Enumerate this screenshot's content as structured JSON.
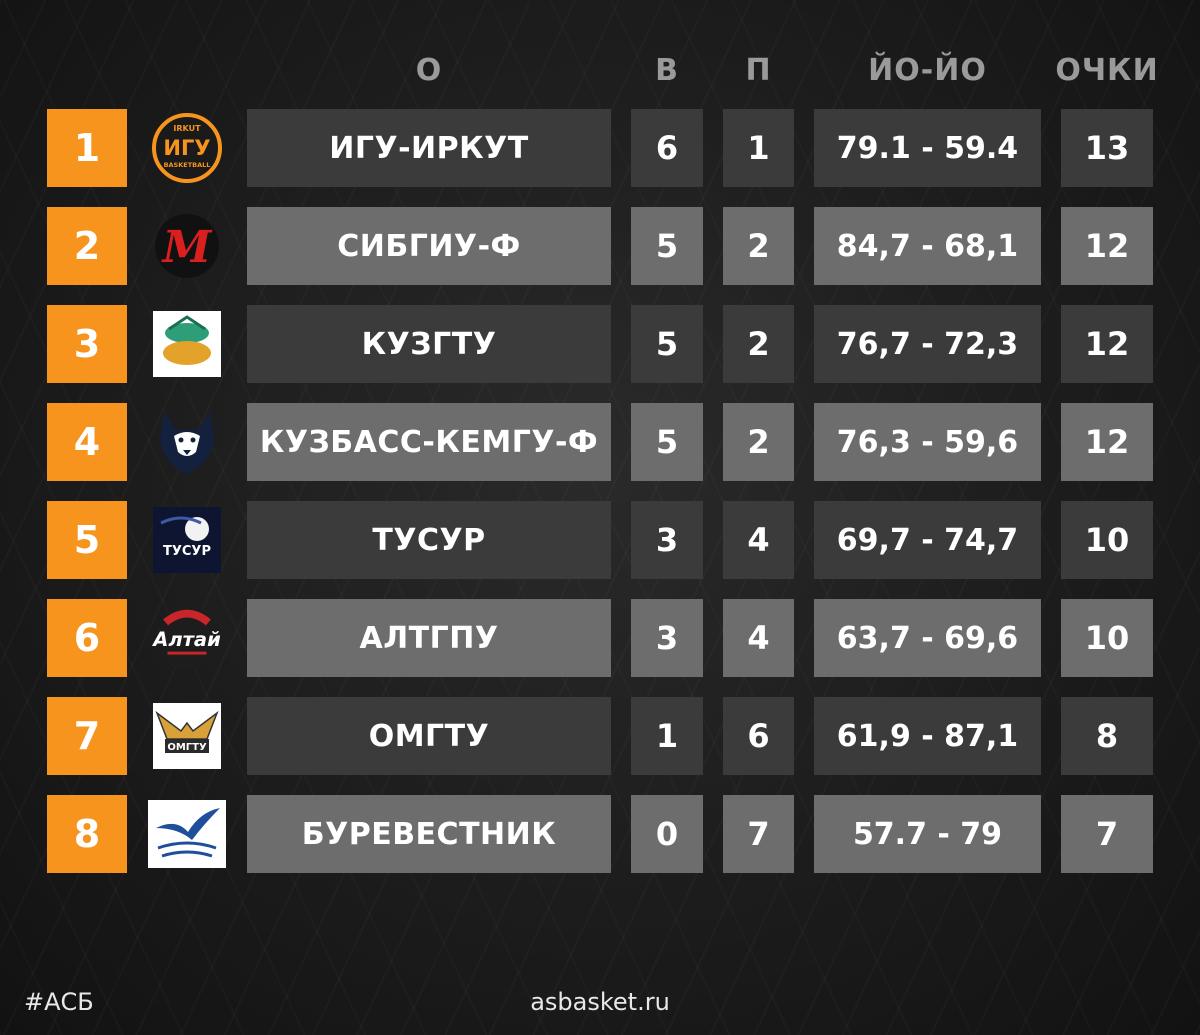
{
  "headers": {
    "team": "О",
    "wins": "В",
    "losses": "П",
    "score": "ЙО-ЙО",
    "points": "ОЧКИ"
  },
  "rows": [
    {
      "rank": "1",
      "team": "ИГУ-ИРКУТ",
      "wins": "6",
      "losses": "1",
      "score": "79.1 - 59.4",
      "points": "13",
      "logo": "igu-irkut-logo"
    },
    {
      "rank": "2",
      "team": "СИБГИУ-Ф",
      "wins": "5",
      "losses": "2",
      "score": "84,7 - 68,1",
      "points": "12",
      "logo": "sibgiu-logo"
    },
    {
      "rank": "3",
      "team": "КУЗГТУ",
      "wins": "5",
      "losses": "2",
      "score": "76,7 - 72,3",
      "points": "12",
      "logo": "kuzgtu-logo"
    },
    {
      "rank": "4",
      "team": "КУЗБАСС-КЕМГУ-Ф",
      "wins": "5",
      "losses": "2",
      "score": "76,3 - 59,6",
      "points": "12",
      "logo": "husky-logo"
    },
    {
      "rank": "5",
      "team": "ТУСУР",
      "wins": "3",
      "losses": "4",
      "score": "69,7 - 74,7",
      "points": "10",
      "logo": "tusur-logo"
    },
    {
      "rank": "6",
      "team": "АЛТГПУ",
      "wins": "3",
      "losses": "4",
      "score": "63,7 - 69,6",
      "points": "10",
      "logo": "altai-logo"
    },
    {
      "rank": "7",
      "team": "ОМГТУ",
      "wins": "1",
      "losses": "6",
      "score": "61,9 - 87,1",
      "points": "8",
      "logo": "omgtu-logo"
    },
    {
      "rank": "8",
      "team": "БУРЕВЕСТНИК",
      "wins": "0",
      "losses": "7",
      "score": "57.7 - 79",
      "points": "7",
      "logo": "burevestnik-logo"
    }
  ],
  "logo_text": {
    "igu_top": "IRKUT",
    "igu_main": "ИГУ",
    "igu_bottom": "BASKETBALL",
    "sibgiu": "M",
    "tusur": "ТУСУР",
    "altai": "Алтай",
    "omgtu": "ОМГТУ"
  },
  "footer": {
    "hashtag": "#АСБ",
    "site": "asbasket.ru"
  },
  "colors": {
    "accent": "#f7941d",
    "row_dark": "#3b3b3b",
    "row_light": "#6d6d6d",
    "header_text": "#9a9a9a"
  }
}
